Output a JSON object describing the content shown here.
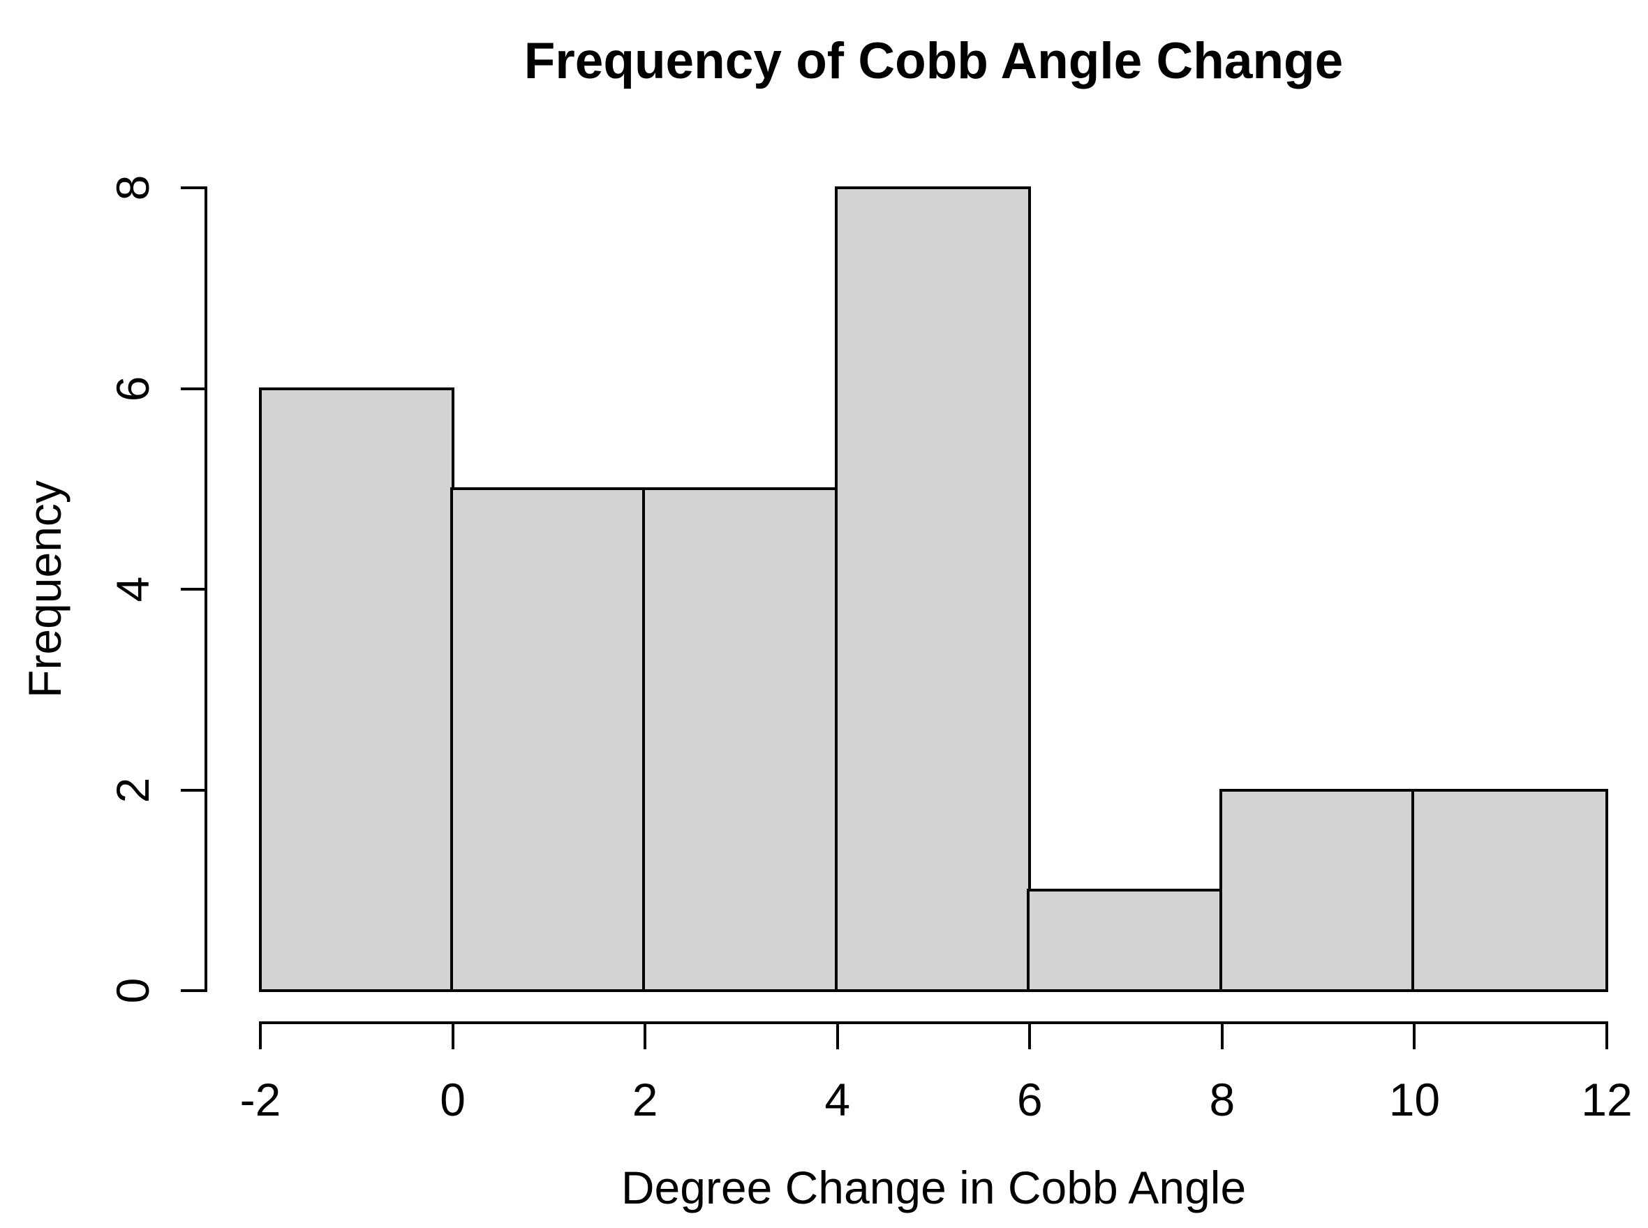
{
  "chart_data": {
    "type": "bar",
    "subtype": "histogram",
    "title": "Frequency of Cobb Angle Change",
    "xlabel": "Degree Change in Cobb Angle",
    "ylabel": "Frequency",
    "breaks": [
      -2,
      0,
      2,
      4,
      6,
      8,
      10,
      12
    ],
    "counts": [
      6,
      5,
      5,
      8,
      1,
      2,
      2
    ],
    "x_tick_values": [
      -2,
      0,
      2,
      4,
      6,
      8,
      10,
      12
    ],
    "x_tick_labels": [
      "-2",
      "0",
      "2",
      "4",
      "6",
      "8",
      "10",
      "12"
    ],
    "y_tick_values": [
      0,
      2,
      4,
      6,
      8
    ],
    "y_tick_labels": [
      "0",
      "2",
      "4",
      "6",
      "8"
    ],
    "xlim": [
      -2,
      12
    ],
    "ylim": [
      0,
      8
    ],
    "grid": false,
    "legend_position": "none",
    "bar_fill_color": "#d3d3d3",
    "bar_border_color": "#000000",
    "axis_color": "#000000",
    "text_color": "#000000",
    "background_color": "#ffffff"
  }
}
